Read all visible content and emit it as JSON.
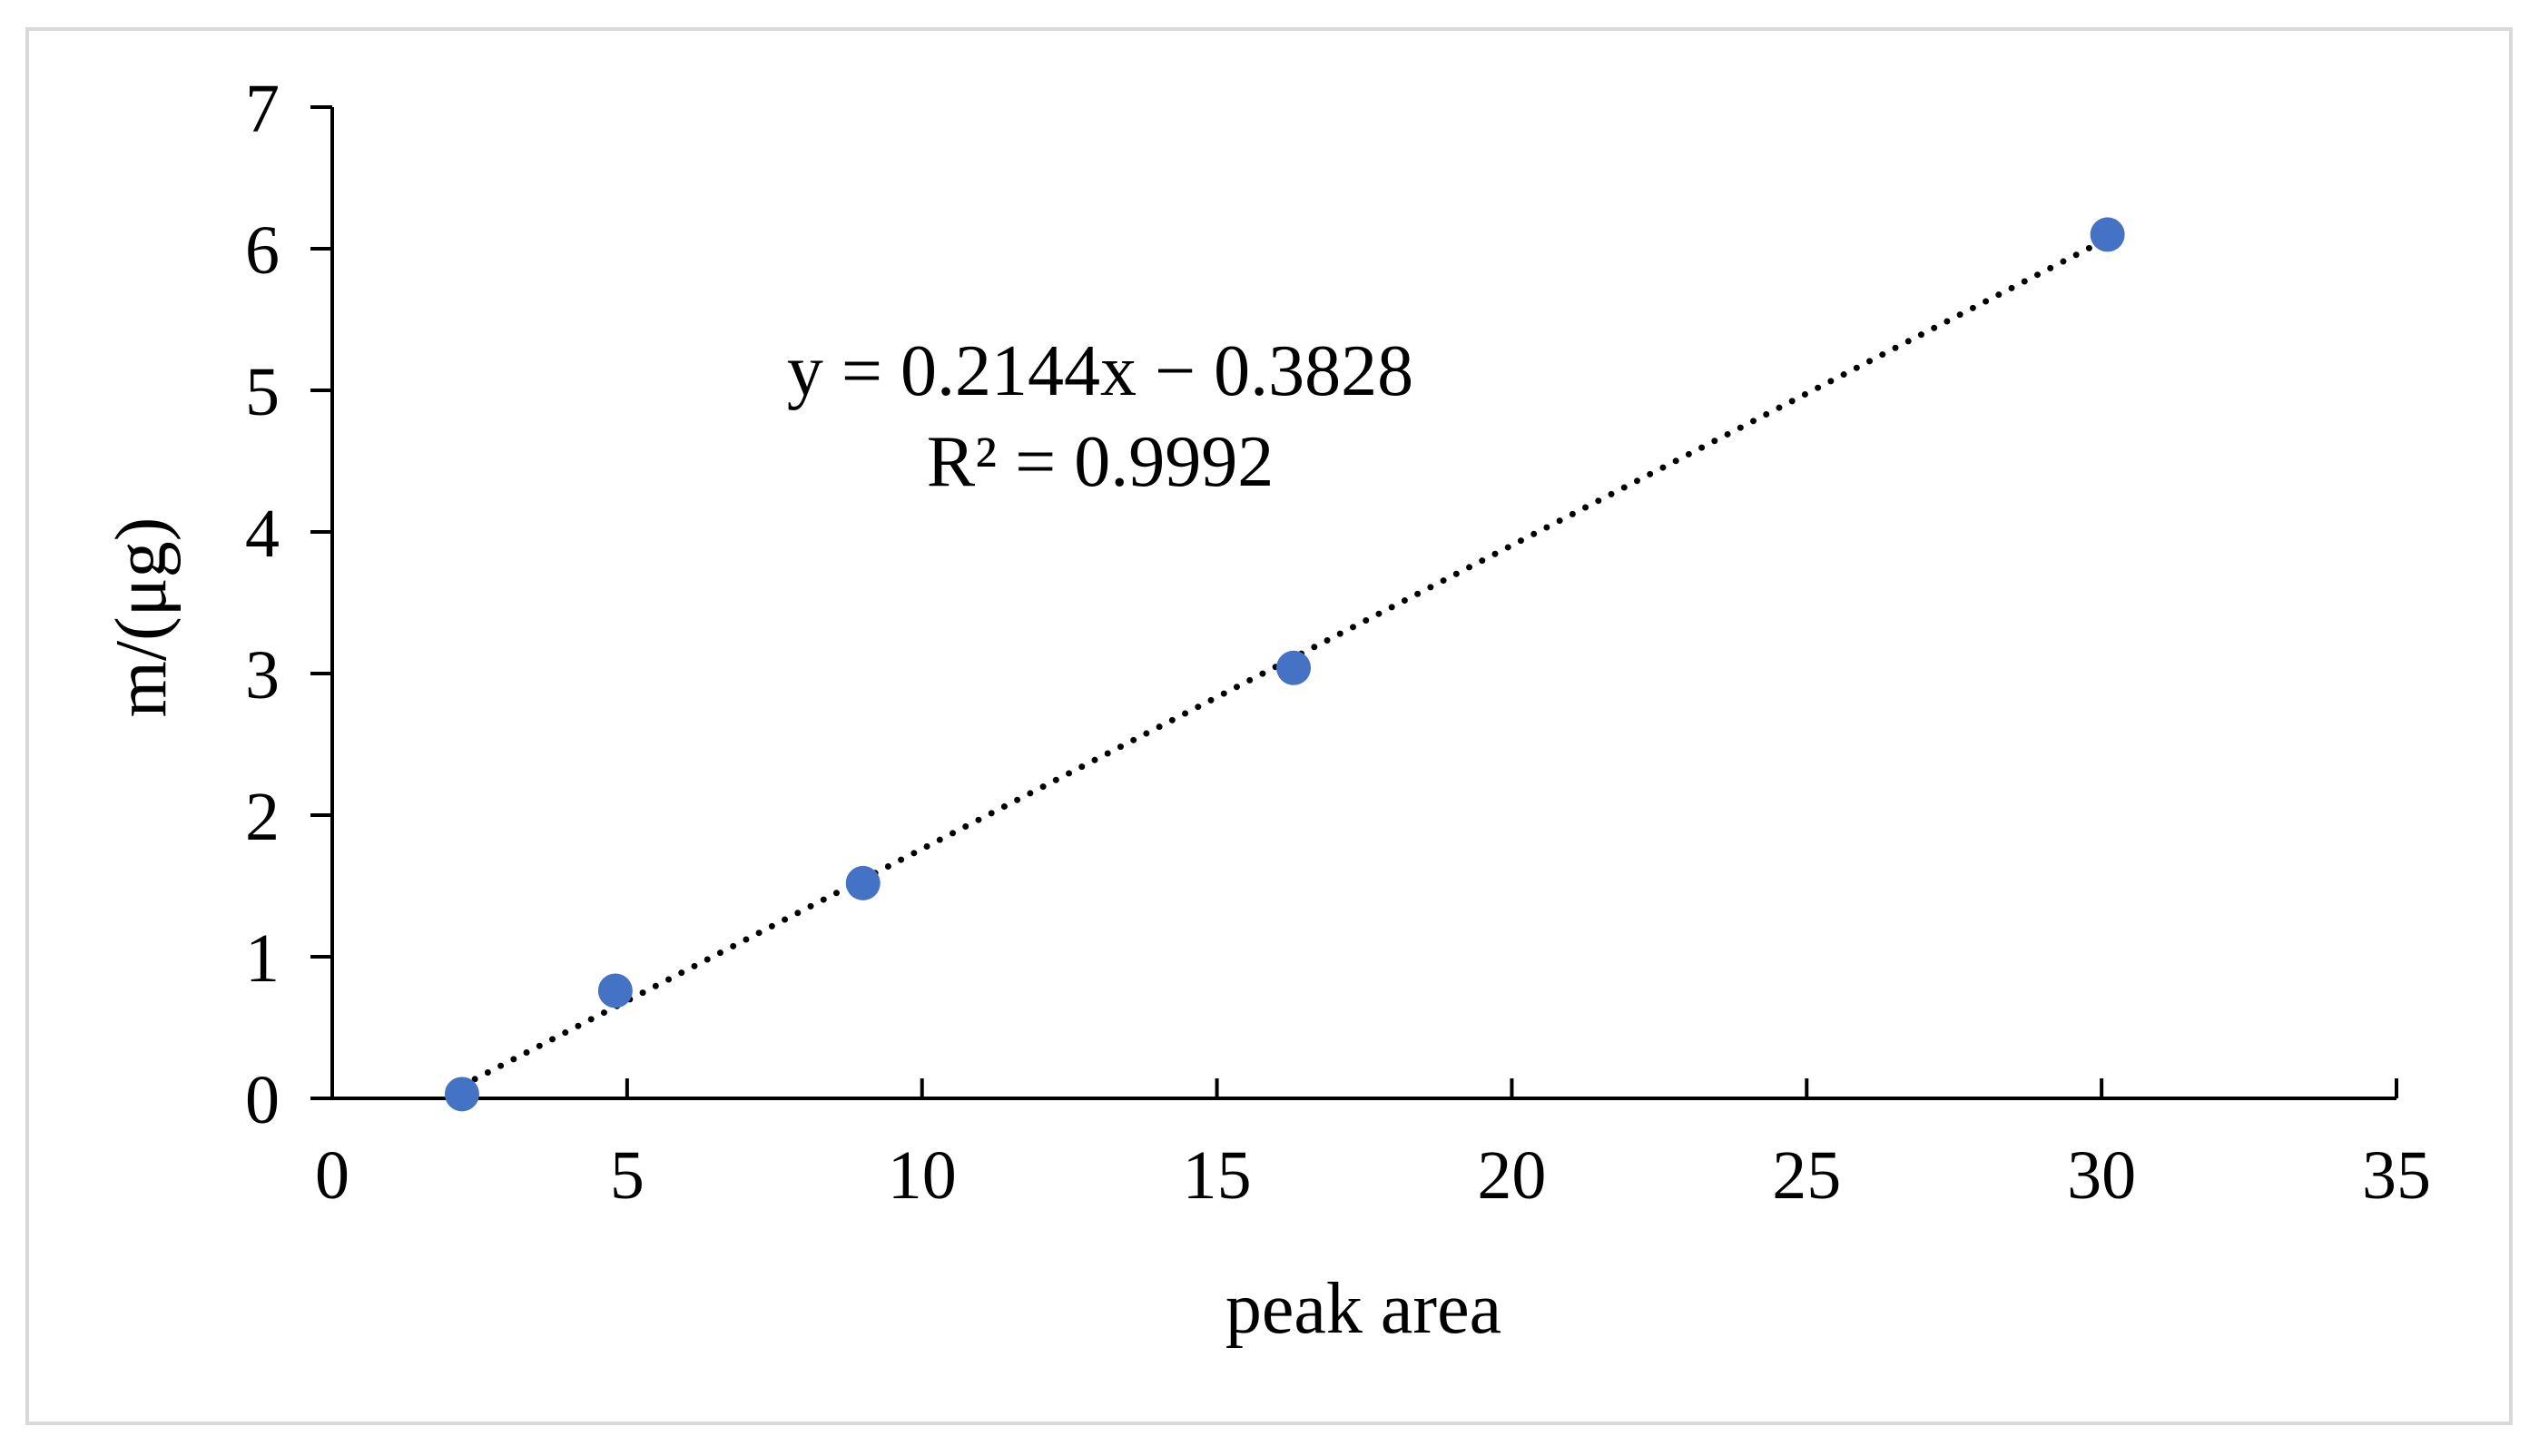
{
  "chart_data": {
    "type": "scatter",
    "title": "",
    "xlabel": "peak area",
    "ylabel": "m/(μg)",
    "xlim": [
      0,
      35
    ],
    "ylim": [
      0,
      7
    ],
    "x_ticks": [
      0,
      5,
      10,
      15,
      20,
      25,
      30,
      35
    ],
    "y_ticks": [
      0,
      1,
      2,
      3,
      4,
      5,
      6,
      7
    ],
    "grid": false,
    "legend": "none",
    "series": [
      {
        "points": [
          {
            "x": 2.2,
            "y": 0.03
          },
          {
            "x": 4.8,
            "y": 0.76
          },
          {
            "x": 9.0,
            "y": 1.52
          },
          {
            "x": 16.3,
            "y": 3.04
          },
          {
            "x": 30.1,
            "y": 6.1
          }
        ],
        "color": "#4472c4"
      }
    ],
    "trendline": {
      "style": "dotted",
      "color": "#000000",
      "slope": 0.2144,
      "intercept": -0.3828,
      "x_range": [
        2.2,
        30.1
      ]
    },
    "annotations": [
      "y = 0.2144x − 0.3828",
      "R² = 0.9992"
    ]
  }
}
